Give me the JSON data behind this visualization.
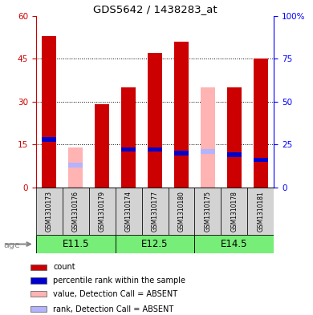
{
  "title": "GDS5642 / 1438283_at",
  "samples": [
    "GSM1310173",
    "GSM1310176",
    "GSM1310179",
    "GSM1310174",
    "GSM1310177",
    "GSM1310180",
    "GSM1310175",
    "GSM1310178",
    "GSM1310181"
  ],
  "count_values": [
    53,
    0,
    29,
    35,
    47,
    51,
    0,
    35,
    45
  ],
  "percentile_rank": [
    28,
    0,
    0,
    22,
    22,
    20,
    21,
    19,
    16
  ],
  "absent_value": [
    0,
    14,
    0,
    0,
    0,
    0,
    35,
    0,
    0
  ],
  "absent_rank": [
    0,
    13,
    0,
    0,
    0,
    0,
    21,
    0,
    0
  ],
  "is_absent": [
    false,
    true,
    false,
    false,
    false,
    false,
    true,
    false,
    false
  ],
  "groups": [
    {
      "label": "E11.5",
      "start": 0,
      "end": 3
    },
    {
      "label": "E12.5",
      "start": 3,
      "end": 6
    },
    {
      "label": "E14.5",
      "start": 6,
      "end": 9
    }
  ],
  "ylim_left": [
    0,
    60
  ],
  "yticks_left": [
    0,
    15,
    30,
    45,
    60
  ],
  "ytick_labels_left": [
    "0",
    "15",
    "30",
    "45",
    "60"
  ],
  "ylim_right": [
    0,
    100
  ],
  "yticks_right": [
    0,
    25,
    50,
    75,
    100
  ],
  "ytick_labels_right": [
    "0",
    "25",
    "50",
    "75",
    "100%"
  ],
  "color_red": "#cc0000",
  "color_blue": "#0000cc",
  "color_pink": "#ffb3b3",
  "color_lightblue": "#b3b3ff",
  "color_bg_sample": "#d3d3d3",
  "color_group_bg": "#77ee77",
  "bar_width": 0.55,
  "legend_items": [
    {
      "color": "#cc0000",
      "label": "count"
    },
    {
      "color": "#0000cc",
      "label": "percentile rank within the sample"
    },
    {
      "color": "#ffb3b3",
      "label": "value, Detection Call = ABSENT"
    },
    {
      "color": "#b3b3ff",
      "label": "rank, Detection Call = ABSENT"
    }
  ]
}
